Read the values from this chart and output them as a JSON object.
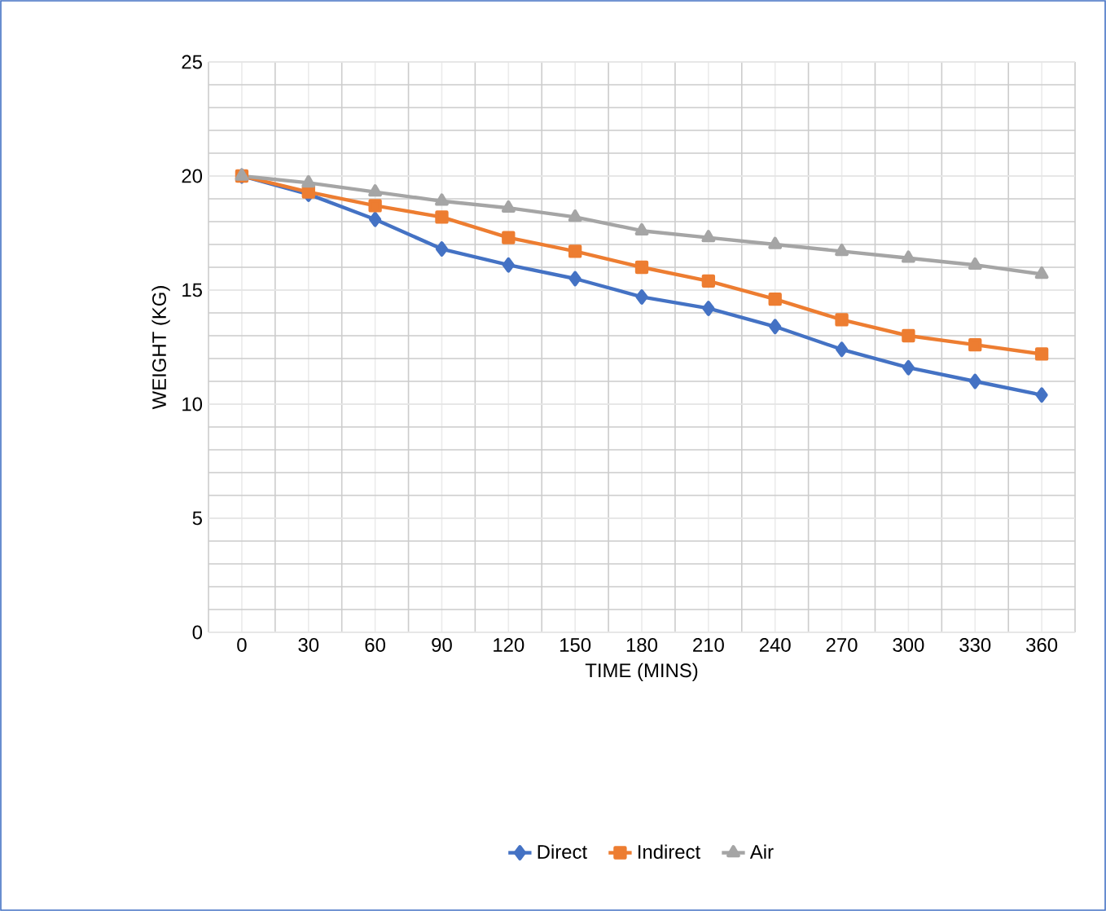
{
  "chart_data": {
    "type": "line",
    "xlabel": "TIME (MINS)",
    "ylabel": "WEIGHT (KG)",
    "categories": [
      "0",
      "30",
      "60",
      "90",
      "120",
      "150",
      "180",
      "210",
      "240",
      "270",
      "300",
      "330",
      "360"
    ],
    "series": [
      {
        "name": "Direct",
        "color": "#4472c4",
        "marker": "diamond",
        "values": [
          20,
          19.2,
          18.1,
          16.8,
          16.1,
          15.5,
          14.7,
          14.2,
          13.4,
          12.4,
          11.6,
          11.0,
          10.4
        ]
      },
      {
        "name": "Indirect",
        "color": "#ed7d31",
        "marker": "square",
        "values": [
          20,
          19.3,
          18.7,
          18.2,
          17.3,
          16.7,
          16.0,
          15.4,
          14.6,
          13.7,
          13.0,
          12.6,
          12.2
        ]
      },
      {
        "name": "Air",
        "color": "#a5a5a5",
        "marker": "triangle",
        "values": [
          20,
          19.7,
          19.3,
          18.9,
          18.6,
          18.2,
          17.6,
          17.3,
          17.0,
          16.7,
          16.4,
          16.1,
          15.7
        ]
      }
    ],
    "ylim": [
      0,
      25
    ],
    "yticks": [
      0,
      5,
      10,
      15,
      20,
      25
    ],
    "grid": true,
    "legend": "bottom"
  }
}
